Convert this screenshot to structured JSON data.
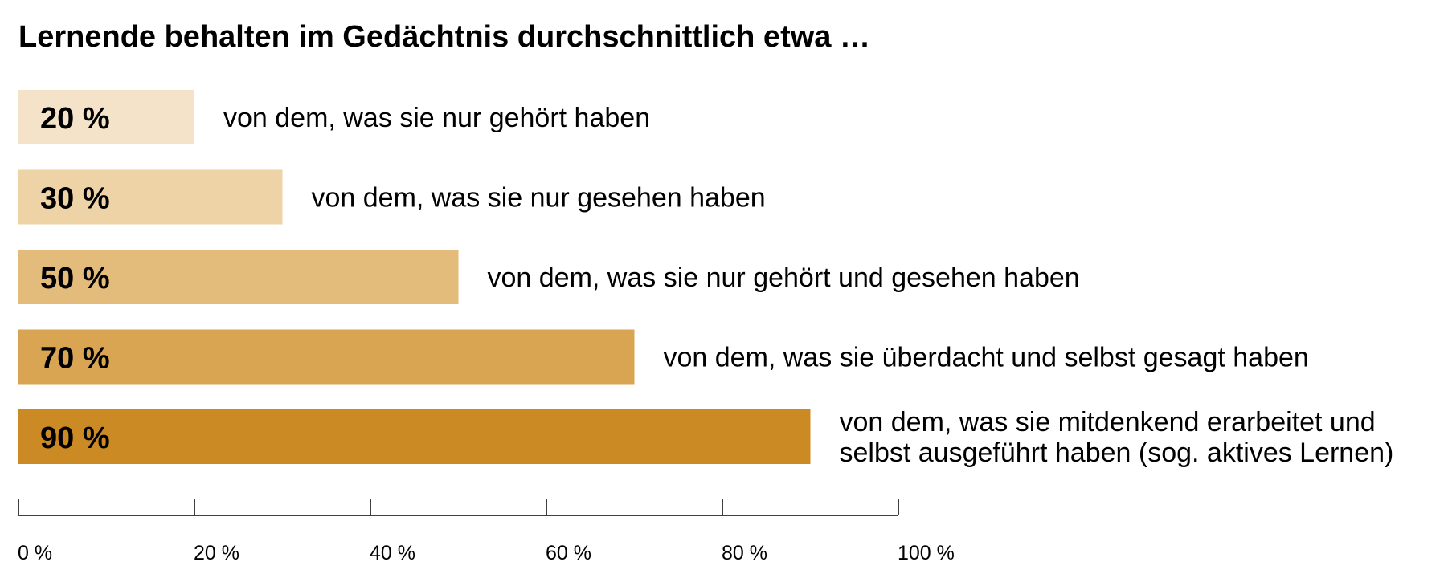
{
  "chart_data": {
    "type": "bar",
    "orientation": "horizontal",
    "title": "Lernende behalten im Gedächtnis durchschnittlich etwa …",
    "xlim": [
      0,
      100
    ],
    "ticks": [
      0,
      20,
      40,
      60,
      80,
      100
    ],
    "tick_labels": [
      "0 %",
      "20 %",
      "40 %",
      "60 %",
      "80 %",
      "100 %"
    ],
    "grid": false,
    "legend": "none",
    "bars": [
      {
        "value": 20,
        "value_label": "20 %",
        "label_lines": [
          "von dem, was sie nur gehört haben"
        ],
        "color": "#f4e3c8"
      },
      {
        "value": 30,
        "value_label": "30 %",
        "label_lines": [
          "von dem, was sie nur gesehen haben"
        ],
        "color": "#eed3a6"
      },
      {
        "value": 50,
        "value_label": "50 %",
        "label_lines": [
          "von dem, was sie nur gehört und gesehen haben"
        ],
        "color": "#e3bb7a"
      },
      {
        "value": 70,
        "value_label": "70 %",
        "label_lines": [
          "von dem, was sie überdacht und selbst gesagt haben"
        ],
        "color": "#d9a553"
      },
      {
        "value": 90,
        "value_label": "90 %",
        "label_lines": [
          "von dem, was sie mitdenkend erarbeitet und",
          "selbst ausgeführt haben (sog. aktives Lernen)"
        ],
        "color": "#cc8a25"
      }
    ]
  }
}
